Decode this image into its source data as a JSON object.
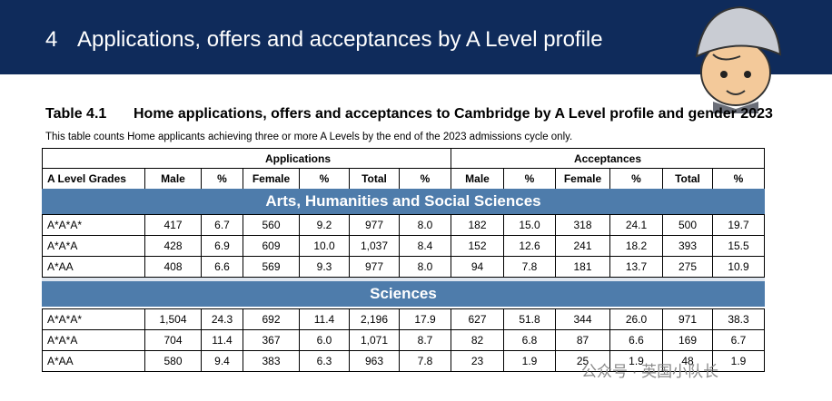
{
  "header": {
    "section_number": "4",
    "title": "Applications, offers and acceptances by A Level profile"
  },
  "table": {
    "label": "Table 4.1",
    "title": "Home applications, offers and acceptances to Cambridge by A Level profile and gender 2023",
    "note": "This table counts Home applicants achieving three or more A Levels by the end of the 2023 admissions cycle only.",
    "group_headers": [
      "Applications",
      "Acceptances"
    ],
    "columns": [
      "A Level Grades",
      "Male",
      "%",
      "Female",
      "%",
      "Total",
      "%",
      "Male",
      "%",
      "Female",
      "%",
      "Total",
      "%"
    ],
    "sections": [
      {
        "name": "Arts, Humanities and Social Sciences",
        "rows": [
          [
            "A*A*A*",
            "417",
            "6.7",
            "560",
            "9.2",
            "977",
            "8.0",
            "182",
            "15.0",
            "318",
            "24.1",
            "500",
            "19.7"
          ],
          [
            "A*A*A",
            "428",
            "6.9",
            "609",
            "10.0",
            "1,037",
            "8.4",
            "152",
            "12.6",
            "241",
            "18.2",
            "393",
            "15.5"
          ],
          [
            "A*AA",
            "408",
            "6.6",
            "569",
            "9.3",
            "977",
            "8.0",
            "94",
            "7.8",
            "181",
            "13.7",
            "275",
            "10.9"
          ]
        ]
      },
      {
        "name": "Sciences",
        "rows": [
          [
            "A*A*A*",
            "1,504",
            "24.3",
            "692",
            "11.4",
            "2,196",
            "17.9",
            "627",
            "51.8",
            "344",
            "26.0",
            "971",
            "38.3"
          ],
          [
            "A*A*A",
            "704",
            "11.4",
            "367",
            "6.0",
            "1,071",
            "8.7",
            "82",
            "6.8",
            "87",
            "6.6",
            "169",
            "6.7"
          ],
          [
            "A*AA",
            "580",
            "9.4",
            "383",
            "6.3",
            "963",
            "7.8",
            "23",
            "1.9",
            "25",
            "1.9",
            "48",
            "1.9"
          ]
        ]
      }
    ]
  },
  "watermark": "公众号 · 英国小队长"
}
